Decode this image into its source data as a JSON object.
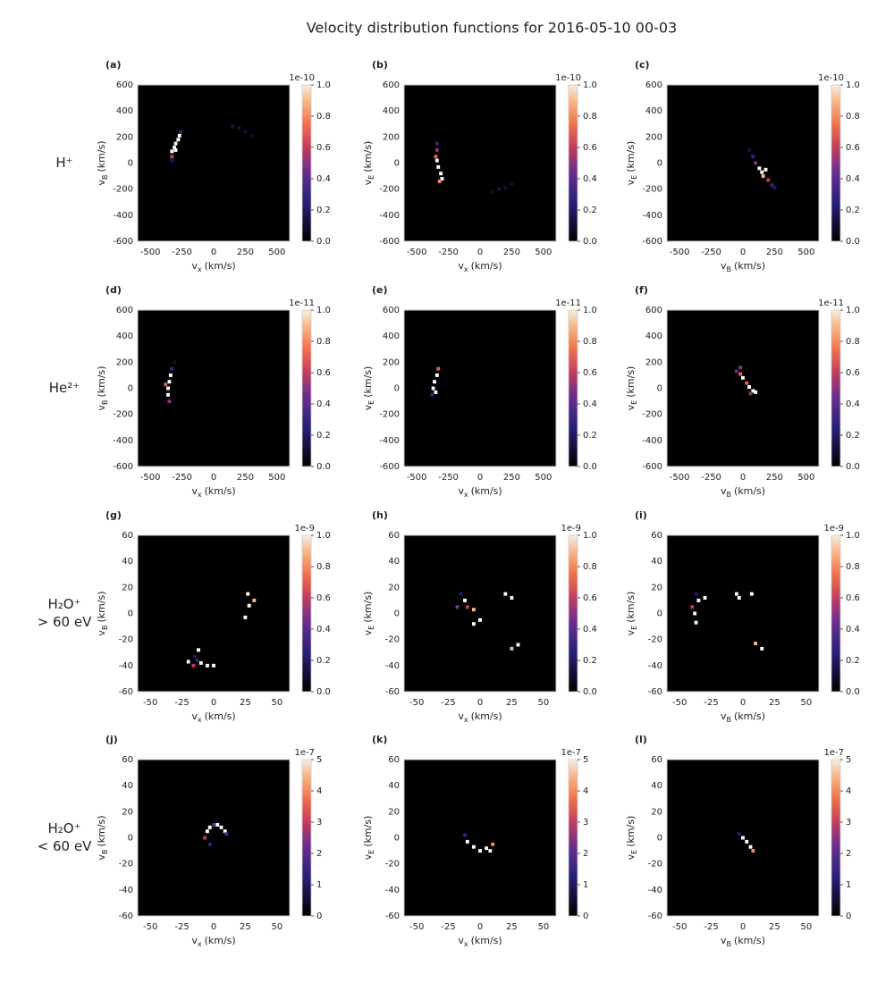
{
  "title": "Velocity distribution functions for 2016-05-10 00-03",
  "row_labels": [
    [
      "H⁺"
    ],
    [
      "He²⁺"
    ],
    [
      "H₂O⁺",
      "> 60 eV"
    ],
    [
      "H₂O⁺",
      "< 60 eV"
    ]
  ],
  "chart_data": [
    {
      "type": "heatmap",
      "label": "(a)",
      "xlabel": [
        "v",
        "x",
        "(km/s)"
      ],
      "ylabel": [
        "v",
        "B",
        "(km/s)"
      ],
      "xlim": [
        -600,
        600
      ],
      "ylim": [
        -600,
        600
      ],
      "xticks": [
        -500,
        -250,
        0,
        250,
        500
      ],
      "yticks": [
        -600,
        -400,
        -200,
        0,
        200,
        400,
        600
      ],
      "clim": [
        0,
        1
      ],
      "cticks": [
        {
          "value": 0,
          "label": "0.0"
        },
        0.2,
        0.4,
        0.6,
        0.8,
        {
          "value": 1,
          "label": "1.0"
        }
      ],
      "offset": "1e-10",
      "x": [
        -330,
        -330,
        -310,
        -300,
        -280,
        -270,
        -300,
        -330,
        -260,
        150,
        200,
        250,
        300
      ],
      "y": [
        50,
        90,
        120,
        150,
        180,
        210,
        100,
        20,
        240,
        280,
        270,
        240,
        210
      ],
      "values": [
        0.6,
        1.5,
        1.5,
        1.5,
        1.5,
        1.5,
        1.5,
        0.2,
        0.3,
        0.15,
        0.15,
        0.12,
        0.08
      ]
    },
    {
      "type": "heatmap",
      "label": "(b)",
      "xlabel": [
        "v",
        "x",
        "(km/s)"
      ],
      "ylabel": [
        "v",
        "E",
        "(km/s)"
      ],
      "xlim": [
        -600,
        600
      ],
      "ylim": [
        -600,
        600
      ],
      "xticks": [
        -500,
        -250,
        0,
        250,
        500
      ],
      "yticks": [
        -600,
        -400,
        -200,
        0,
        200,
        400,
        600
      ],
      "clim": [
        0,
        1
      ],
      "cticks": [
        {
          "value": 0,
          "label": "0.0"
        },
        0.2,
        0.4,
        0.6,
        0.8,
        {
          "value": 1,
          "label": "1.0"
        }
      ],
      "offset": "1e-10",
      "x": [
        -340,
        -340,
        -350,
        -340,
        -330,
        -310,
        -300,
        -320,
        100,
        150,
        200,
        250
      ],
      "y": [
        150,
        100,
        50,
        20,
        -30,
        -80,
        -120,
        -140,
        -220,
        -200,
        -190,
        -160
      ],
      "values": [
        0.3,
        0.5,
        0.7,
        1.5,
        1.5,
        1.5,
        1.5,
        0.8,
        0.1,
        0.15,
        0.12,
        0.1
      ]
    },
    {
      "type": "heatmap",
      "label": "(c)",
      "xlabel": [
        "v",
        "B",
        "(km/s)"
      ],
      "ylabel": [
        "v",
        "E",
        "(km/s)"
      ],
      "xlim": [
        -600,
        600
      ],
      "ylim": [
        -600,
        600
      ],
      "xticks": [
        -500,
        -250,
        0,
        250,
        500
      ],
      "yticks": [
        -600,
        -400,
        -200,
        0,
        200,
        400,
        600
      ],
      "clim": [
        0,
        1
      ],
      "cticks": [
        {
          "value": 0,
          "label": "0.0"
        },
        0.2,
        0.4,
        0.6,
        0.8,
        {
          "value": 1,
          "label": "1.0"
        }
      ],
      "offset": "1e-10",
      "x": [
        50,
        80,
        100,
        130,
        150,
        180,
        160,
        200,
        230,
        250
      ],
      "y": [
        100,
        50,
        0,
        -40,
        -70,
        -50,
        -100,
        -130,
        -170,
        -190
      ],
      "values": [
        0.15,
        0.3,
        0.5,
        1.5,
        1.5,
        1.5,
        0.9,
        0.6,
        0.3,
        0.2
      ]
    },
    {
      "type": "heatmap",
      "label": "(d)",
      "xlabel": [
        "v",
        "x",
        "(km/s)"
      ],
      "ylabel": [
        "v",
        "B",
        "(km/s)"
      ],
      "xlim": [
        -600,
        600
      ],
      "ylim": [
        -600,
        600
      ],
      "xticks": [
        -500,
        -250,
        0,
        250,
        500
      ],
      "yticks": [
        -600,
        -400,
        -200,
        0,
        200,
        400,
        600
      ],
      "clim": [
        0,
        1
      ],
      "cticks": [
        {
          "value": 0,
          "label": "0.0"
        },
        0.2,
        0.4,
        0.6,
        0.8,
        {
          "value": 1,
          "label": "1.0"
        }
      ],
      "offset": "1e-11",
      "x": [
        -350,
        -360,
        -360,
        -350,
        -340,
        -380,
        -330,
        -310
      ],
      "y": [
        -100,
        -50,
        0,
        50,
        100,
        30,
        150,
        200
      ],
      "values": [
        0.5,
        1.5,
        1.5,
        1.5,
        1.5,
        0.7,
        0.3,
        0.1
      ]
    },
    {
      "type": "heatmap",
      "label": "(e)",
      "xlabel": [
        "v",
        "x",
        "(km/s)"
      ],
      "ylabel": [
        "v",
        "E",
        "(km/s)"
      ],
      "xlim": [
        -600,
        600
      ],
      "ylim": [
        -600,
        600
      ],
      "xticks": [
        -500,
        -250,
        0,
        250,
        500
      ],
      "yticks": [
        -600,
        -400,
        -200,
        0,
        200,
        400,
        600
      ],
      "clim": [
        0,
        1
      ],
      "cticks": [
        {
          "value": 0,
          "label": "0.0"
        },
        0.2,
        0.4,
        0.6,
        0.8,
        {
          "value": 1,
          "label": "1.0"
        }
      ],
      "offset": "1e-11",
      "x": [
        -380,
        -370,
        -360,
        -340,
        -330,
        -350
      ],
      "y": [
        -50,
        0,
        50,
        100,
        150,
        -30
      ],
      "values": [
        0.3,
        1.5,
        1.5,
        1.5,
        0.7,
        1.5
      ]
    },
    {
      "type": "heatmap",
      "label": "(f)",
      "xlabel": [
        "v",
        "B",
        "(km/s)"
      ],
      "ylabel": [
        "v",
        "E",
        "(km/s)"
      ],
      "xlim": [
        -600,
        600
      ],
      "ylim": [
        -600,
        600
      ],
      "xticks": [
        -500,
        -250,
        0,
        250,
        500
      ],
      "yticks": [
        -600,
        -400,
        -200,
        0,
        200,
        400,
        600
      ],
      "clim": [
        0,
        1
      ],
      "cticks": [
        {
          "value": 0,
          "label": "0.0"
        },
        0.2,
        0.4,
        0.6,
        0.8,
        {
          "value": 1,
          "label": "1.0"
        }
      ],
      "offset": "1e-11",
      "x": [
        -50,
        -20,
        0,
        30,
        50,
        80,
        100,
        60,
        -20
      ],
      "y": [
        130,
        110,
        80,
        40,
        10,
        -20,
        -30,
        -40,
        160
      ],
      "values": [
        0.4,
        0.7,
        1.5,
        0.7,
        1.5,
        1.5,
        1.5,
        0.5,
        0.5
      ]
    },
    {
      "type": "heatmap",
      "label": "(g)",
      "xlabel": [
        "v",
        "x",
        "(km/s)"
      ],
      "ylabel": [
        "v",
        "B",
        "(km/s)"
      ],
      "xlim": [
        -60,
        60
      ],
      "ylim": [
        -60,
        60
      ],
      "xticks": [
        -50,
        -25,
        0,
        25,
        50
      ],
      "yticks": [
        -60,
        -40,
        -20,
        0,
        20,
        40,
        60
      ],
      "clim": [
        0,
        1
      ],
      "cticks": [
        {
          "value": 0,
          "label": "0.0"
        },
        0.2,
        0.4,
        0.6,
        0.8,
        {
          "value": 1,
          "label": "1.0"
        }
      ],
      "offset": "1e-9",
      "x": [
        27,
        32,
        28,
        25,
        -12,
        -15,
        -20,
        -16,
        -10,
        -5,
        0,
        -13
      ],
      "y": [
        15,
        10,
        6,
        -3,
        -28,
        -33,
        -37,
        -40,
        -38,
        -40,
        -40,
        -36
      ],
      "values": [
        1.5,
        0.9,
        1.5,
        1.5,
        1.5,
        0.2,
        1.5,
        0.6,
        1.5,
        1.5,
        1.5,
        0.3
      ]
    },
    {
      "type": "heatmap",
      "label": "(h)",
      "xlabel": [
        "v",
        "x",
        "(km/s)"
      ],
      "ylabel": [
        "v",
        "E",
        "(km/s)"
      ],
      "xlim": [
        -60,
        60
      ],
      "ylim": [
        -60,
        60
      ],
      "xticks": [
        -50,
        -25,
        0,
        25,
        50
      ],
      "yticks": [
        -60,
        -40,
        -20,
        0,
        20,
        40,
        60
      ],
      "clim": [
        0,
        1
      ],
      "cticks": [
        {
          "value": 0,
          "label": "0.0"
        },
        0.2,
        0.4,
        0.6,
        0.8,
        {
          "value": 1,
          "label": "1.0"
        }
      ],
      "offset": "1e-9",
      "x": [
        -15,
        -12,
        -18,
        -10,
        -5,
        0,
        -5,
        20,
        25,
        25,
        30
      ],
      "y": [
        15,
        10,
        5,
        5,
        3,
        -5,
        -8,
        15,
        12,
        -27,
        -24
      ],
      "values": [
        0.2,
        1.5,
        0.5,
        0.6,
        0.9,
        1.5,
        1.5,
        1.5,
        1.5,
        0.9,
        1.5
      ]
    },
    {
      "type": "heatmap",
      "label": "(i)",
      "xlabel": [
        "v",
        "B",
        "(km/s)"
      ],
      "ylabel": [
        "v",
        "E",
        "(km/s)"
      ],
      "xlim": [
        -60,
        60
      ],
      "ylim": [
        -60,
        60
      ],
      "xticks": [
        -50,
        -25,
        0,
        25,
        50
      ],
      "yticks": [
        -60,
        -40,
        -20,
        0,
        20,
        40,
        60
      ],
      "clim": [
        0,
        1
      ],
      "cticks": [
        {
          "value": 0,
          "label": "0.0"
        },
        0.2,
        0.4,
        0.6,
        0.8,
        {
          "value": 1,
          "label": "1.0"
        }
      ],
      "offset": "1e-9",
      "x": [
        -37,
        -35,
        -30,
        -40,
        -38,
        -37,
        -5,
        -3,
        7,
        10,
        15
      ],
      "y": [
        15,
        10,
        12,
        5,
        0,
        -7,
        15,
        12,
        15,
        -23,
        -27
      ],
      "values": [
        0.2,
        1.5,
        1.5,
        0.6,
        1.5,
        1.5,
        1.5,
        1.5,
        1.5,
        0.9,
        1.5
      ]
    },
    {
      "type": "heatmap",
      "label": "(j)",
      "xlabel": [
        "v",
        "x",
        "(km/s)"
      ],
      "ylabel": [
        "v",
        "B",
        "(km/s)"
      ],
      "xlim": [
        -60,
        60
      ],
      "ylim": [
        -60,
        60
      ],
      "xticks": [
        -50,
        -25,
        0,
        25,
        50
      ],
      "yticks": [
        -60,
        -40,
        -20,
        0,
        20,
        40,
        60
      ],
      "clim": [
        0,
        5
      ],
      "cticks": [
        0,
        1,
        2,
        3,
        4,
        5
      ],
      "offset": "1e-7",
      "x": [
        -5,
        -7,
        -3,
        0,
        3,
        6,
        9,
        10,
        -3
      ],
      "y": [
        5,
        0,
        -5,
        10,
        10,
        8,
        5,
        3,
        8
      ],
      "values": [
        6,
        3,
        1.5,
        2,
        6,
        6,
        6,
        2,
        6
      ]
    },
    {
      "type": "heatmap",
      "label": "(k)",
      "xlabel": [
        "v",
        "x",
        "(km/s)"
      ],
      "ylabel": [
        "v",
        "E",
        "(km/s)"
      ],
      "xlim": [
        -60,
        60
      ],
      "ylim": [
        -60,
        60
      ],
      "xticks": [
        -50,
        -25,
        0,
        25,
        50
      ],
      "yticks": [
        -60,
        -40,
        -20,
        0,
        20,
        40,
        60
      ],
      "clim": [
        0,
        5
      ],
      "cticks": [
        0,
        1,
        2,
        3,
        4,
        5
      ],
      "offset": "1e-7",
      "x": [
        -12,
        -10,
        -5,
        0,
        5,
        10,
        8
      ],
      "y": [
        2,
        -3,
        -7,
        -10,
        -8,
        -5,
        -10
      ],
      "values": [
        1.5,
        6,
        6,
        6,
        6,
        4,
        6
      ]
    },
    {
      "type": "heatmap",
      "label": "(l)",
      "xlabel": [
        "v",
        "B",
        "(km/s)"
      ],
      "ylabel": [
        "v",
        "E",
        "(km/s)"
      ],
      "xlim": [
        -60,
        60
      ],
      "ylim": [
        -60,
        60
      ],
      "xticks": [
        -50,
        -25,
        0,
        25,
        50
      ],
      "yticks": [
        -60,
        -40,
        -20,
        0,
        20,
        40,
        60
      ],
      "clim": [
        0,
        5
      ],
      "cticks": [
        0,
        1,
        2,
        3,
        4,
        5
      ],
      "offset": "1e-7",
      "x": [
        -3,
        0,
        3,
        6,
        8
      ],
      "y": [
        3,
        0,
        -3,
        -7,
        -10
      ],
      "values": [
        1,
        6,
        6,
        6,
        4
      ]
    }
  ]
}
